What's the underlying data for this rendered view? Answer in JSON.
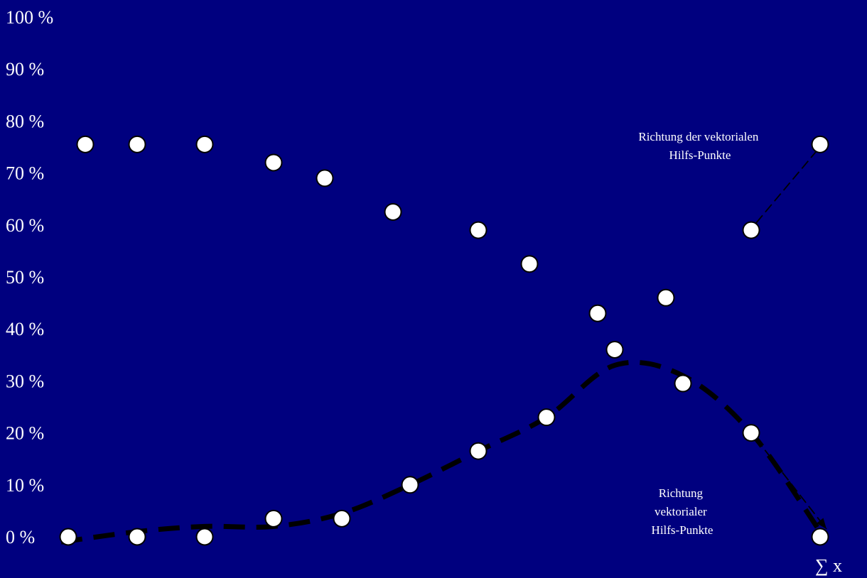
{
  "chart_data": {
    "type": "scatter",
    "ylim": [
      0,
      100
    ],
    "y_ticks": [
      "0 %",
      "10 %",
      "20 %",
      "30 %",
      "40 %",
      "50 %",
      "60 %",
      "70 %",
      "80 %",
      "90 %",
      "100 %"
    ],
    "xlabel": "∑ x",
    "series": [
      {
        "kind": "points",
        "points": [
          {
            "x": 1,
            "y": 75.5
          },
          {
            "x": 2,
            "y": 75.5
          },
          {
            "x": 3,
            "y": 75.5
          },
          {
            "x": 4,
            "y": 72
          },
          {
            "x": 5,
            "y": 69
          },
          {
            "x": 6,
            "y": 62.5
          },
          {
            "x": 7,
            "y": 59
          },
          {
            "x": 8,
            "y": 52.5
          },
          {
            "x": 9,
            "y": 43
          },
          {
            "x": 10,
            "y": 46
          },
          {
            "x": 11,
            "y": 59
          },
          {
            "x": 12,
            "y": 75.5
          }
        ]
      },
      {
        "kind": "points",
        "points": [
          {
            "x": 0,
            "y": 0
          },
          {
            "x": 1,
            "y": 0
          },
          {
            "x": 2,
            "y": 0
          },
          {
            "x": 3,
            "y": 3.5
          },
          {
            "x": 4,
            "y": 3.5
          },
          {
            "x": 5,
            "y": 10
          },
          {
            "x": 6,
            "y": 16.5
          },
          {
            "x": 7,
            "y": 23
          },
          {
            "x": 8,
            "y": 36
          },
          {
            "x": 9,
            "y": 29.5
          },
          {
            "x": 10,
            "y": 20
          },
          {
            "x": 11,
            "y": 0
          }
        ]
      },
      {
        "kind": "dashed-curve",
        "color": "#000000",
        "points": [
          {
            "x": 0,
            "y": -1
          },
          {
            "x": 1,
            "y": 1
          },
          {
            "x": 2,
            "y": 2
          },
          {
            "x": 3,
            "y": 2
          },
          {
            "x": 4,
            "y": 4.5
          },
          {
            "x": 5,
            "y": 10
          },
          {
            "x": 6,
            "y": 16.5
          },
          {
            "x": 7,
            "y": 23
          },
          {
            "x": 8,
            "y": 33
          },
          {
            "x": 9,
            "y": 31
          },
          {
            "x": 10,
            "y": 20
          },
          {
            "x": 11,
            "y": 1
          }
        ]
      }
    ],
    "annotations": [
      {
        "text_lines": [
          "Richtung der vektorialen",
          "Hilfs-Punkte"
        ]
      },
      {
        "text_lines": [
          "Richtung",
          "vektorialer",
          "Hilfs-Punkte"
        ]
      }
    ],
    "colors": {
      "background": "#00007f",
      "points": "#ffffff",
      "outline": "#000000",
      "text": "#ffffff"
    }
  }
}
